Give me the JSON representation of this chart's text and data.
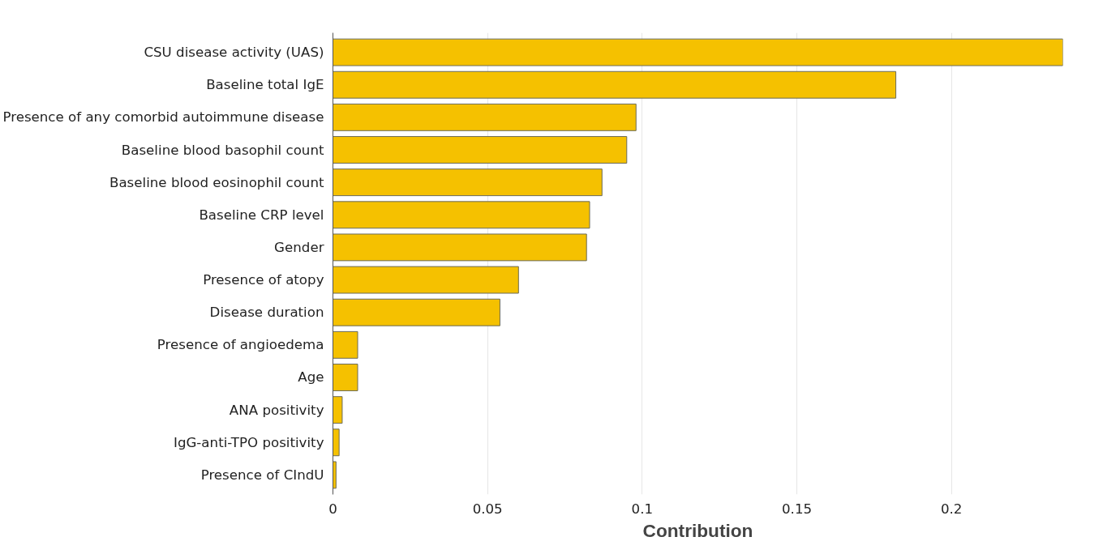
{
  "chart_data": {
    "type": "bar",
    "orientation": "horizontal",
    "xlabel": "Contribution",
    "categories": [
      "CSU disease activity (UAS)",
      "Baseline total IgE",
      "Presence of any comorbid autoimmune disease",
      "Baseline blood basophil count",
      "Baseline blood eosinophil count",
      "Baseline CRP level",
      "Gender",
      "Presence of atopy",
      "Disease duration",
      "Presence of angioedema",
      "Age",
      "ANA positivity",
      "IgG-anti-TPO positivity",
      "Presence of CIndU"
    ],
    "values": [
      0.236,
      0.182,
      0.098,
      0.095,
      0.087,
      0.083,
      0.082,
      0.06,
      0.054,
      0.008,
      0.008,
      0.003,
      0.002,
      0.001
    ],
    "color": "#f5c100",
    "xlim": [
      0,
      0.236
    ],
    "xticks": [
      0,
      0.05,
      0.1,
      0.15,
      0.2
    ],
    "grid": "x"
  }
}
